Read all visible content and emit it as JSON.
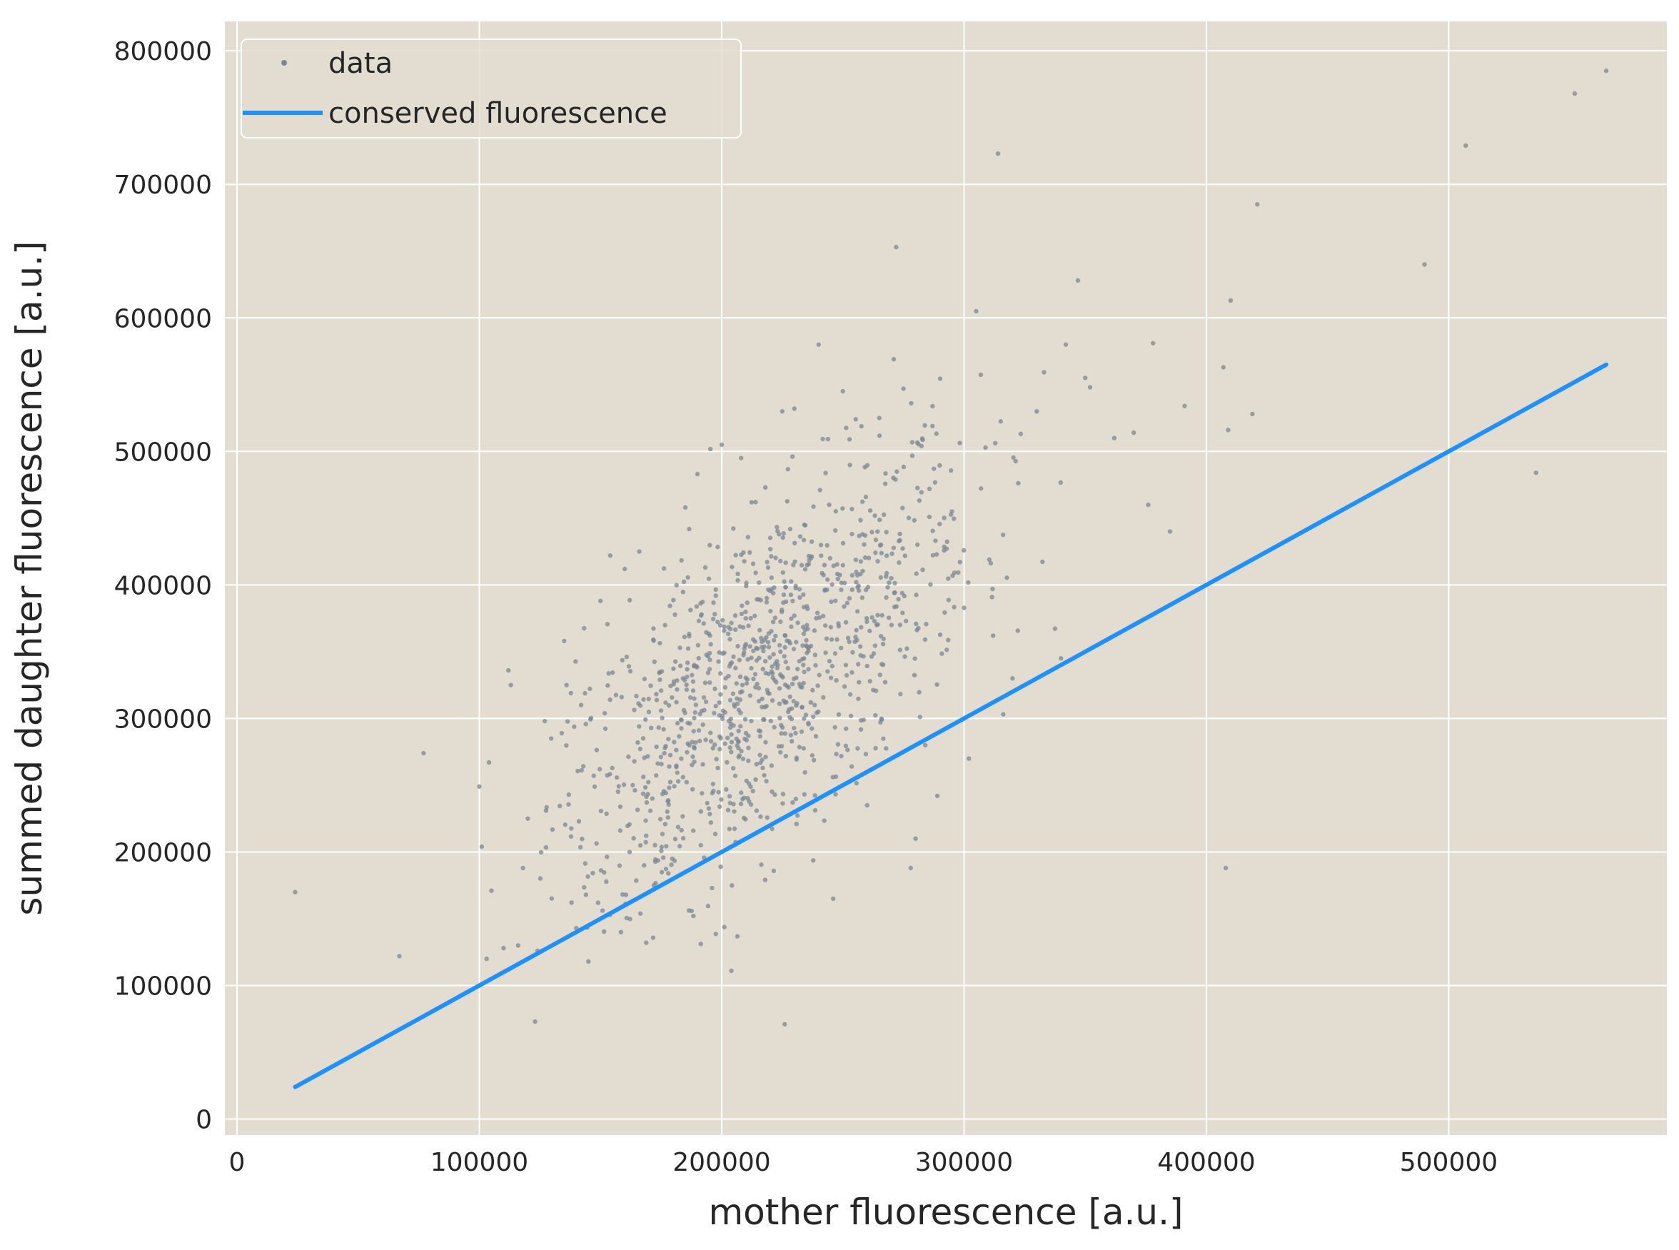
{
  "chart_data": {
    "type": "scatter",
    "xlabel": "mother fluorescence [a.u.]",
    "ylabel": "summed daughter fluorescence [a.u.]",
    "xlim": [
      -5000,
      590000
    ],
    "ylim": [
      -12000,
      822000
    ],
    "xticks": [
      "0",
      "100000",
      "200000",
      "300000",
      "400000",
      "500000"
    ],
    "yticks": [
      "0",
      "100000",
      "200000",
      "300000",
      "400000",
      "500000",
      "600000",
      "700000",
      "800000"
    ],
    "grid": true,
    "legend_position": "top-left",
    "colors": {
      "background": "#e3ddd1",
      "grid": "#ffffff",
      "data": "#7b8793",
      "line": "#1e90ff"
    },
    "series": [
      {
        "name": "data",
        "kind": "scatter",
        "points": [
          [
            24000,
            170000
          ],
          [
            67000,
            122000
          ],
          [
            77000,
            274000
          ],
          [
            100000,
            249000
          ],
          [
            101000,
            204000
          ],
          [
            103000,
            120000
          ],
          [
            104000,
            267000
          ],
          [
            105000,
            171000
          ],
          [
            110000,
            128000
          ],
          [
            112000,
            336000
          ],
          [
            113000,
            325000
          ],
          [
            116000,
            130000
          ],
          [
            118000,
            188000
          ],
          [
            120000,
            225000
          ],
          [
            123000,
            73000
          ],
          [
            124000,
            126000
          ],
          [
            127000,
            298000
          ],
          [
            135000,
            358000
          ],
          [
            136000,
            325000
          ],
          [
            140000,
            143000
          ],
          [
            142000,
            310000
          ],
          [
            145000,
            118000
          ],
          [
            150000,
            388000
          ],
          [
            154000,
            422000
          ],
          [
            160000,
            412000
          ],
          [
            162000,
            200000
          ],
          [
            166000,
            425000
          ],
          [
            172000,
            175000
          ],
          [
            178000,
            184000
          ],
          [
            185000,
            458000
          ],
          [
            190000,
            483000
          ],
          [
            196000,
            173000
          ],
          [
            200000,
            505000
          ],
          [
            204000,
            111000
          ],
          [
            208000,
            495000
          ],
          [
            214000,
            462000
          ],
          [
            218000,
            473000
          ],
          [
            225000,
            530000
          ],
          [
            226000,
            71000
          ],
          [
            230000,
            532000
          ],
          [
            240000,
            580000
          ],
          [
            246000,
            165000
          ],
          [
            250000,
            545000
          ],
          [
            260000,
            235000
          ],
          [
            265000,
            525000
          ],
          [
            271000,
            569000
          ],
          [
            272000,
            653000
          ],
          [
            275000,
            547000
          ],
          [
            278000,
            188000
          ],
          [
            280000,
            210000
          ],
          [
            284000,
            280000
          ],
          [
            289000,
            242000
          ],
          [
            295000,
            455000
          ],
          [
            302000,
            270000
          ],
          [
            305000,
            605000
          ],
          [
            312000,
            362000
          ],
          [
            314000,
            723000
          ],
          [
            320000,
            330000
          ],
          [
            330000,
            530000
          ],
          [
            340000,
            345000
          ],
          [
            342000,
            580000
          ],
          [
            347000,
            628000
          ],
          [
            350000,
            555000
          ],
          [
            352000,
            548000
          ],
          [
            362000,
            510000
          ],
          [
            370000,
            514000
          ],
          [
            376000,
            460000
          ],
          [
            378000,
            581000
          ],
          [
            385000,
            440000
          ],
          [
            391000,
            534000
          ],
          [
            407000,
            563000
          ],
          [
            408000,
            188000
          ],
          [
            409000,
            516000
          ],
          [
            410000,
            613000
          ],
          [
            419000,
            528000
          ],
          [
            421000,
            685000
          ],
          [
            490000,
            640000
          ],
          [
            507000,
            729000
          ],
          [
            536000,
            484000
          ],
          [
            552000,
            768000
          ],
          [
            565000,
            785000
          ]
        ],
        "cluster": {
          "count": 1050,
          "x_mean": 215000,
          "x_sd": 45000,
          "y_slope": 1.35,
          "y_intercept": 35000,
          "y_sd": 62000,
          "x_min": 125000,
          "x_max": 360000,
          "y_min": 130000,
          "y_max": 560000
        }
      },
      {
        "name": "conserved fluorescence",
        "kind": "line",
        "x": [
          24000,
          565000
        ],
        "y": [
          24000,
          565000
        ]
      }
    ]
  }
}
